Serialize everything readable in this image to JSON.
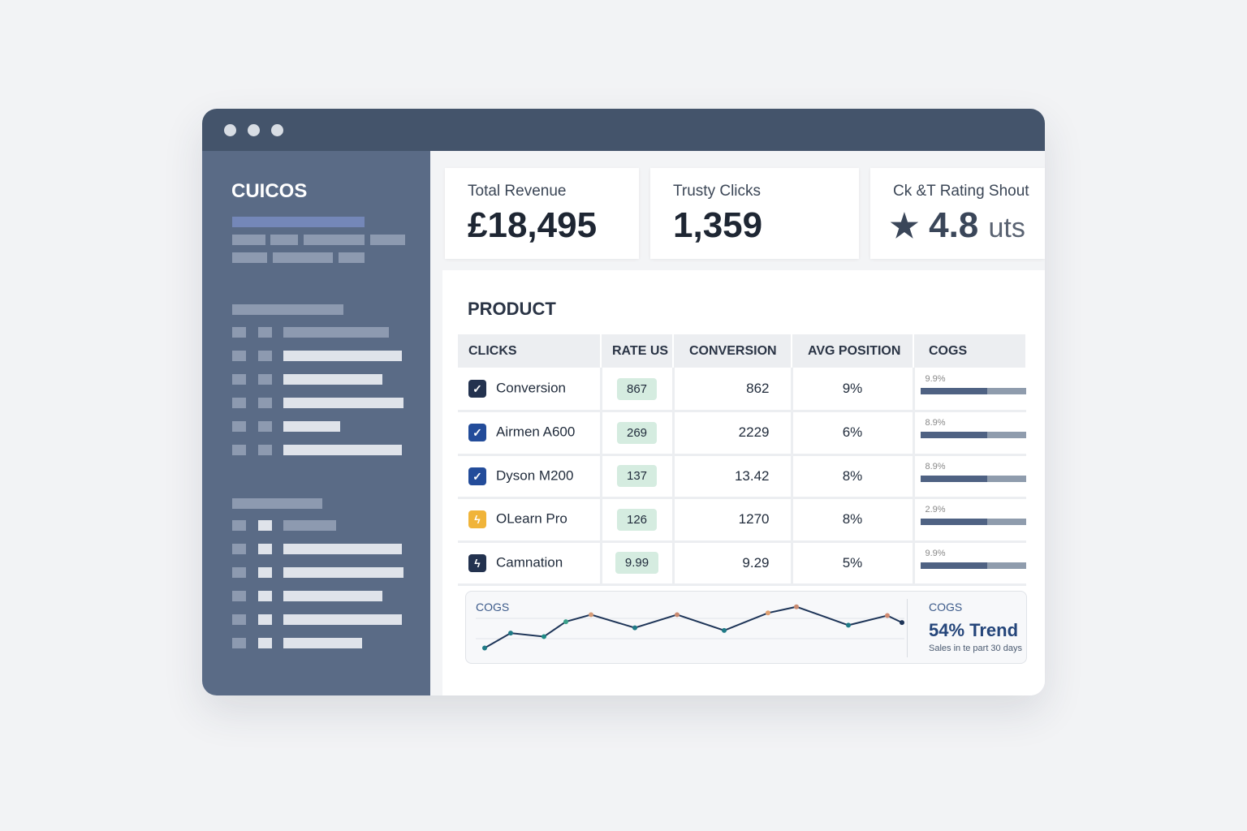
{
  "app": {
    "brand": "CUICOS"
  },
  "kpis": [
    {
      "label": "Total Revenue",
      "value": "£18,495"
    },
    {
      "label": "Trusty Clicks",
      "value": "1,359"
    },
    {
      "label": "Ck &T Rating Shout",
      "value": "4.8",
      "unit": "uts",
      "icon": "star-icon"
    }
  ],
  "product": {
    "title": "PRODUCT",
    "columns": [
      "CLICKS",
      "RATE US",
      "CONVERSION",
      "AVG POSITION",
      "COGS"
    ],
    "rows": [
      {
        "name": "Conversion",
        "icon": "check-icon",
        "icon_color": "#23324f",
        "rate": "867",
        "conversion": "862",
        "avg": "9%",
        "cogs": "9.9%",
        "cogs_fill": 0.63
      },
      {
        "name": "Airmen A600",
        "icon": "check-icon",
        "icon_color": "#234c9a",
        "rate": "269",
        "conversion": "2229",
        "avg": "6%",
        "cogs": "8.9%",
        "cogs_fill": 0.63
      },
      {
        "name": "Dyson M200",
        "icon": "check-icon",
        "icon_color": "#234c9a",
        "rate": "137",
        "conversion": "13.42",
        "avg": "8%",
        "cogs": "8.9%",
        "cogs_fill": 0.63
      },
      {
        "name": "OLearn Pro",
        "icon": "bolt-icon",
        "icon_color": "#f0b43a",
        "rate": "126",
        "conversion": "1270",
        "avg": "8%",
        "cogs": "2.9%",
        "cogs_fill": 0.63
      },
      {
        "name": "Camnation",
        "icon": "bolt-icon",
        "icon_color": "#23324f",
        "rate": "9.99",
        "conversion": "9.29",
        "avg": "5%",
        "cogs": "9.9%",
        "cogs_fill": 0.63
      }
    ]
  },
  "trend": {
    "label": "COGS",
    "side_label": "COGS",
    "headline": "54% Trend",
    "caption": "Sales in te part 30 days",
    "line_color": "#1e3558",
    "values": [
      16,
      33,
      29,
      46,
      54,
      39,
      54,
      36,
      56,
      63,
      42,
      53,
      45
    ]
  }
}
